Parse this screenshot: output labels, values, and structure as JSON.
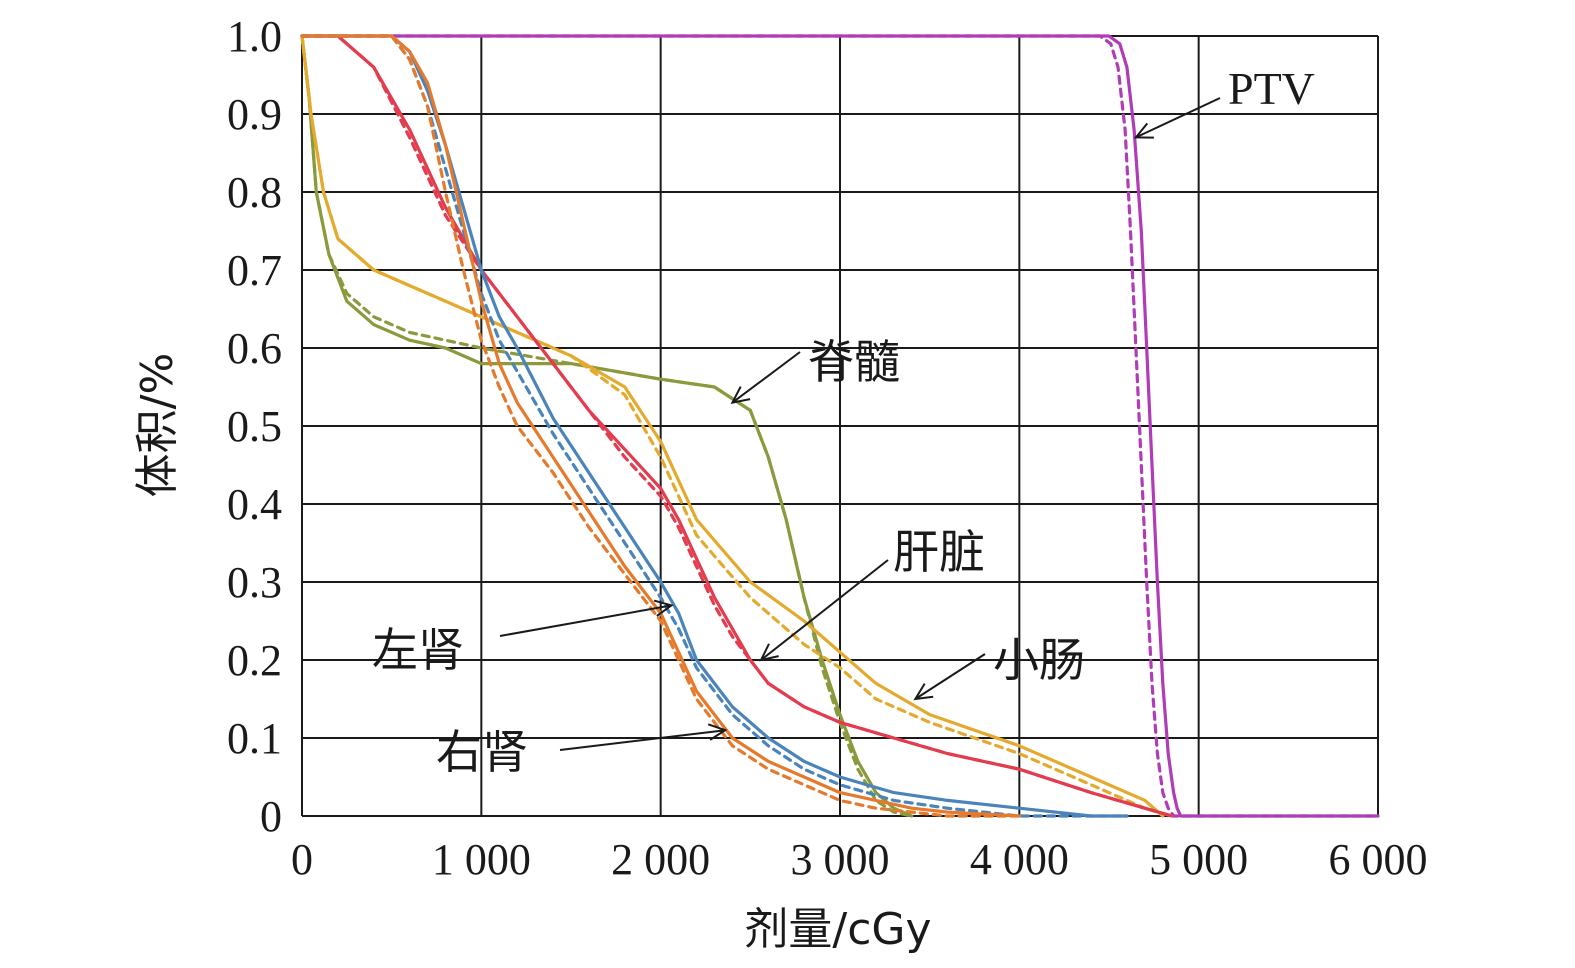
{
  "chart_data": {
    "type": "line",
    "title": "",
    "xlabel": "剂量/cGy",
    "ylabel": "体积/%",
    "xlim": [
      0,
      6000
    ],
    "ylim": [
      0,
      1.0
    ],
    "grid": true,
    "x_ticks": [
      0,
      1000,
      2000,
      3000,
      4000,
      5000,
      6000
    ],
    "x_tick_labels": [
      "0",
      "1 000",
      "2 000",
      "3 000",
      "4 000",
      "5 000",
      "6 000"
    ],
    "y_ticks": [
      0,
      0.1,
      0.2,
      0.3,
      0.4,
      0.5,
      0.6,
      0.7,
      0.8,
      0.9,
      1.0
    ],
    "y_tick_labels": [
      "0",
      "0.1",
      "0.2",
      "0.3",
      "0.4",
      "0.5",
      "0.6",
      "0.7",
      "0.8",
      "0.9",
      "1.0"
    ],
    "series": [
      {
        "name": "PTV",
        "color": "#b03cb8",
        "style": "solid",
        "x": [
          0,
          4500,
          4560,
          4600,
          4640,
          4680,
          4710,
          4740,
          4770,
          4800,
          4830,
          4860,
          4880,
          4900,
          4950,
          6000
        ],
        "y": [
          1.0,
          1.0,
          0.99,
          0.96,
          0.88,
          0.75,
          0.6,
          0.45,
          0.3,
          0.17,
          0.08,
          0.03,
          0.01,
          0.0,
          0.0,
          0.0
        ]
      },
      {
        "name": "PTV",
        "color": "#b03cb8",
        "style": "dashed",
        "x": [
          0,
          4450,
          4510,
          4550,
          4590,
          4620,
          4650,
          4680,
          4710,
          4740,
          4770,
          4800,
          4830,
          4860,
          4950,
          6000
        ],
        "y": [
          1.0,
          1.0,
          0.99,
          0.96,
          0.88,
          0.75,
          0.6,
          0.45,
          0.3,
          0.17,
          0.08,
          0.03,
          0.01,
          0.0,
          0.0,
          0.0
        ]
      },
      {
        "name": "脊髓",
        "color": "#8a9a3c",
        "style": "solid",
        "x": [
          0,
          40,
          80,
          150,
          250,
          400,
          600,
          800,
          1000,
          1500,
          2000,
          2300,
          2500,
          2600,
          2700,
          2800,
          2900,
          3000,
          3100,
          3200,
          3300,
          3400
        ],
        "y": [
          1.0,
          0.92,
          0.8,
          0.72,
          0.66,
          0.63,
          0.61,
          0.6,
          0.58,
          0.58,
          0.56,
          0.55,
          0.52,
          0.46,
          0.38,
          0.28,
          0.2,
          0.13,
          0.07,
          0.03,
          0.01,
          0.0
        ]
      },
      {
        "name": "脊髓",
        "color": "#8a9a3c",
        "style": "dashed",
        "x": [
          0,
          40,
          80,
          150,
          250,
          400,
          600,
          800,
          1000,
          1500,
          2000,
          2300,
          2500,
          2600,
          2700,
          2800,
          2900,
          3000,
          3100,
          3200,
          3300,
          3400
        ],
        "y": [
          1.0,
          0.92,
          0.8,
          0.72,
          0.67,
          0.64,
          0.62,
          0.61,
          0.6,
          0.58,
          0.56,
          0.55,
          0.52,
          0.46,
          0.38,
          0.28,
          0.19,
          0.12,
          0.06,
          0.02,
          0.005,
          0.0
        ]
      },
      {
        "name": "小肠",
        "color": "#e3aa2e",
        "style": "solid",
        "x": [
          0,
          50,
          120,
          200,
          400,
          600,
          800,
          1000,
          1200,
          1500,
          1800,
          2000,
          2200,
          2500,
          2800,
          3000,
          3200,
          3500,
          4000,
          4400,
          4700,
          4800
        ],
        "y": [
          1.0,
          0.9,
          0.8,
          0.74,
          0.7,
          0.68,
          0.66,
          0.64,
          0.62,
          0.59,
          0.55,
          0.48,
          0.38,
          0.3,
          0.25,
          0.21,
          0.17,
          0.13,
          0.09,
          0.05,
          0.02,
          0.0
        ]
      },
      {
        "name": "小肠",
        "color": "#e3aa2e",
        "style": "dashed",
        "x": [
          0,
          50,
          120,
          200,
          400,
          600,
          800,
          1000,
          1200,
          1500,
          1800,
          2000,
          2200,
          2500,
          2800,
          3000,
          3200,
          3500,
          4000,
          4400,
          4700,
          4850
        ],
        "y": [
          1.0,
          0.9,
          0.8,
          0.74,
          0.7,
          0.68,
          0.66,
          0.64,
          0.62,
          0.59,
          0.54,
          0.46,
          0.36,
          0.28,
          0.22,
          0.19,
          0.15,
          0.12,
          0.08,
          0.04,
          0.01,
          0.0
        ]
      },
      {
        "name": "肝脏",
        "color": "#e23c4e",
        "style": "solid",
        "x": [
          0,
          200,
          400,
          600,
          800,
          1000,
          1200,
          1400,
          1600,
          1800,
          2000,
          2100,
          2200,
          2300,
          2400,
          2500,
          2600,
          2800,
          3000,
          3300,
          3600,
          4000,
          4400,
          4700,
          4850
        ],
        "y": [
          1.0,
          1.0,
          0.96,
          0.88,
          0.78,
          0.7,
          0.64,
          0.58,
          0.52,
          0.47,
          0.42,
          0.38,
          0.33,
          0.28,
          0.24,
          0.2,
          0.17,
          0.14,
          0.12,
          0.1,
          0.08,
          0.06,
          0.03,
          0.01,
          0.0
        ]
      },
      {
        "name": "肝脏",
        "color": "#e23c4e",
        "style": "dashed",
        "x": [
          0,
          200,
          400,
          600,
          800,
          1000,
          1200,
          1400,
          1600,
          1800,
          2000,
          2100,
          2200,
          2300,
          2400,
          2500,
          2600,
          2800,
          3000,
          3300,
          3600,
          4000,
          4400,
          4700,
          4850
        ],
        "y": [
          1.0,
          1.0,
          0.96,
          0.87,
          0.77,
          0.7,
          0.64,
          0.58,
          0.52,
          0.46,
          0.41,
          0.37,
          0.32,
          0.27,
          0.23,
          0.2,
          0.17,
          0.14,
          0.12,
          0.1,
          0.08,
          0.06,
          0.03,
          0.01,
          0.0
        ]
      },
      {
        "name": "左肾",
        "color": "#4a84bb",
        "style": "solid",
        "x": [
          0,
          500,
          600,
          700,
          800,
          900,
          1000,
          1100,
          1200,
          1400,
          1600,
          1800,
          2000,
          2100,
          2200,
          2400,
          2600,
          2800,
          3000,
          3300,
          3600,
          4000,
          4400,
          4600
        ],
        "y": [
          1.0,
          1.0,
          0.98,
          0.93,
          0.86,
          0.78,
          0.7,
          0.64,
          0.6,
          0.51,
          0.44,
          0.37,
          0.3,
          0.26,
          0.2,
          0.14,
          0.1,
          0.07,
          0.05,
          0.03,
          0.02,
          0.01,
          0.0,
          0.0
        ]
      },
      {
        "name": "左肾",
        "color": "#4a84bb",
        "style": "dashed",
        "x": [
          0,
          500,
          600,
          700,
          800,
          900,
          1000,
          1100,
          1200,
          1400,
          1600,
          1800,
          2000,
          2100,
          2200,
          2400,
          2600,
          2800,
          3000,
          3300,
          3600,
          4000,
          4400,
          4600
        ],
        "y": [
          1.0,
          1.0,
          0.97,
          0.91,
          0.83,
          0.75,
          0.67,
          0.61,
          0.57,
          0.49,
          0.42,
          0.35,
          0.28,
          0.24,
          0.19,
          0.13,
          0.09,
          0.06,
          0.04,
          0.02,
          0.01,
          0.0,
          0.0,
          0.0
        ]
      },
      {
        "name": "右肾",
        "color": "#e57a2c",
        "style": "solid",
        "x": [
          0,
          500,
          600,
          700,
          800,
          900,
          1000,
          1100,
          1200,
          1400,
          1600,
          1800,
          2000,
          2100,
          2200,
          2400,
          2600,
          2800,
          3000,
          3200,
          3400,
          3600,
          4000
        ],
        "y": [
          1.0,
          1.0,
          0.98,
          0.94,
          0.86,
          0.76,
          0.66,
          0.58,
          0.53,
          0.46,
          0.39,
          0.32,
          0.26,
          0.21,
          0.16,
          0.1,
          0.07,
          0.05,
          0.03,
          0.02,
          0.01,
          0.005,
          0.0
        ]
      },
      {
        "name": "右肾",
        "color": "#e57a2c",
        "style": "dashed",
        "x": [
          0,
          500,
          600,
          700,
          800,
          900,
          1000,
          1100,
          1200,
          1400,
          1600,
          1800,
          2000,
          2100,
          2200,
          2400,
          2600,
          2800,
          3000,
          3200,
          3400,
          3600,
          4000
        ],
        "y": [
          1.0,
          1.0,
          0.97,
          0.91,
          0.8,
          0.7,
          0.61,
          0.55,
          0.5,
          0.44,
          0.37,
          0.31,
          0.25,
          0.2,
          0.15,
          0.09,
          0.06,
          0.04,
          0.02,
          0.01,
          0.005,
          0.0,
          0.0
        ]
      }
    ],
    "annotations": [
      {
        "text": "PTV",
        "target_x": 4650,
        "target_y": 0.87
      },
      {
        "text": "脊髓",
        "target_x": 2400,
        "target_y": 0.53
      },
      {
        "text": "肝脏",
        "target_x": 2560,
        "target_y": 0.2
      },
      {
        "text": "左肾",
        "target_x": 2060,
        "target_y": 0.27
      },
      {
        "text": "小肠",
        "target_x": 3420,
        "target_y": 0.15
      },
      {
        "text": "右肾",
        "target_x": 2360,
        "target_y": 0.11
      }
    ]
  }
}
